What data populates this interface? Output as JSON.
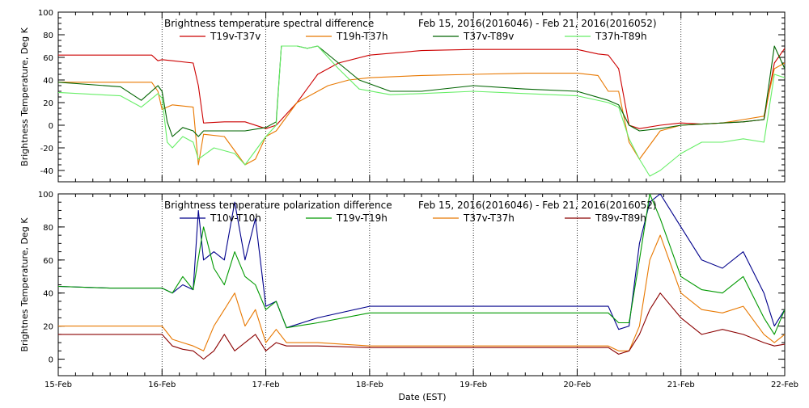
{
  "chart_data": [
    {
      "type": "line",
      "title": "Brightness temperature spectral difference",
      "date_range": "Feb 15, 2016(2016046) - Feb 21, 2016(2016052)",
      "xlabel": "",
      "ylabel": "Brightness Temperature, Deg K",
      "xlim": [
        0,
        7
      ],
      "ylim": [
        -50,
        100
      ],
      "y_ticks": [
        "-40",
        "-20",
        "0",
        "20",
        "40",
        "60",
        "80",
        "100"
      ],
      "y_tick_values": [
        -40,
        -20,
        0,
        20,
        40,
        60,
        80,
        100
      ],
      "x_tick_values": [
        0,
        1,
        2,
        3,
        4,
        5,
        6,
        7
      ],
      "grid": "dotted vertical at day boundaries",
      "legend_placement": "top, horizontal",
      "series": [
        {
          "name": "T19v-T37v",
          "color": "#cc0000",
          "x": [
            0,
            0.9,
            0.96,
            1.0,
            1.1,
            1.3,
            1.35,
            1.4,
            1.6,
            1.8,
            2.0,
            2.1,
            2.3,
            2.5,
            2.7,
            3.0,
            3.5,
            4.0,
            4.5,
            5.0,
            5.2,
            5.3,
            5.4,
            5.5,
            5.6,
            5.8,
            6.0,
            6.2,
            6.4,
            6.6,
            6.8,
            6.9,
            7.0
          ],
          "y": [
            62,
            62,
            57,
            58,
            57,
            55,
            35,
            2,
            3,
            3,
            -3,
            0,
            20,
            45,
            55,
            62,
            66,
            67,
            67,
            67,
            63,
            62,
            50,
            0,
            -3,
            0,
            2,
            1,
            2,
            3,
            5,
            55,
            68
          ]
        },
        {
          "name": "T19h-T37h",
          "color": "#e87800",
          "x": [
            0,
            0.9,
            0.96,
            1.0,
            1.1,
            1.3,
            1.35,
            1.4,
            1.6,
            1.8,
            1.9,
            2.0,
            2.1,
            2.3,
            2.4,
            2.6,
            2.8,
            3.0,
            3.5,
            4.0,
            4.5,
            5.0,
            5.2,
            5.3,
            5.4,
            5.5,
            5.6,
            5.8,
            6.0,
            6.2,
            6.4,
            6.6,
            6.8,
            6.9,
            7.0
          ],
          "y": [
            38,
            38,
            30,
            14,
            18,
            16,
            -35,
            -8,
            -10,
            -35,
            -30,
            -10,
            -5,
            20,
            25,
            35,
            40,
            42,
            44,
            45,
            46,
            46,
            44,
            30,
            30,
            -15,
            -30,
            -5,
            0,
            1,
            2,
            5,
            8,
            50,
            55
          ]
        },
        {
          "name": "T37v-T89v",
          "color": "#006400",
          "x": [
            0,
            0.6,
            0.8,
            0.96,
            1.0,
            1.05,
            1.1,
            1.2,
            1.3,
            1.35,
            1.4,
            1.5,
            1.8,
            2.0,
            2.1,
            2.15,
            2.3,
            2.4,
            2.5,
            2.7,
            2.9,
            3.2,
            3.5,
            4.0,
            4.5,
            5.0,
            5.3,
            5.4,
            5.5,
            5.6,
            5.8,
            6.0,
            6.2,
            6.4,
            6.6,
            6.8,
            6.9,
            7.0
          ],
          "y": [
            38,
            34,
            22,
            35,
            30,
            3,
            -10,
            -2,
            -5,
            -10,
            -5,
            -5,
            -5,
            -2,
            3,
            70,
            70,
            68,
            70,
            55,
            40,
            30,
            30,
            35,
            32,
            30,
            22,
            18,
            0,
            -5,
            -3,
            0,
            1,
            2,
            3,
            5,
            70,
            50
          ]
        },
        {
          "name": "T37h-T89h",
          "color": "#66ee66",
          "x": [
            0,
            0.6,
            0.8,
            0.96,
            1.0,
            1.05,
            1.1,
            1.2,
            1.3,
            1.35,
            1.5,
            1.7,
            1.8,
            2.0,
            2.1,
            2.15,
            2.3,
            2.4,
            2.5,
            2.7,
            2.9,
            3.2,
            3.5,
            4.0,
            4.5,
            5.0,
            5.3,
            5.4,
            5.5,
            5.6,
            5.7,
            5.8,
            6.0,
            6.2,
            6.4,
            6.6,
            6.8,
            6.9,
            7.0
          ],
          "y": [
            29,
            26,
            16,
            28,
            24,
            -15,
            -20,
            -10,
            -15,
            -30,
            -20,
            -25,
            -35,
            -10,
            0,
            70,
            70,
            68,
            70,
            50,
            32,
            27,
            28,
            30,
            28,
            26,
            20,
            16,
            -12,
            -30,
            -45,
            -40,
            -25,
            -15,
            -15,
            -12,
            -15,
            45,
            42
          ]
        }
      ]
    },
    {
      "type": "line",
      "title": "Brightness temperature polarization difference",
      "date_range": "Feb 15, 2016(2016046) - Feb 21, 2016(2016052)",
      "xlabel": "Date (EST)",
      "ylabel": "Brightnes Temperature, Deg K",
      "xlim": [
        0,
        7
      ],
      "ylim": [
        -10,
        100
      ],
      "x_ticks": [
        "15-Feb",
        "16-Feb",
        "17-Feb",
        "18-Feb",
        "19-Feb",
        "20-Feb",
        "21-Feb",
        "22-Feb"
      ],
      "x_tick_values": [
        0,
        1,
        2,
        3,
        4,
        5,
        6,
        7
      ],
      "y_ticks": [
        "0",
        "20",
        "40",
        "60",
        "80",
        "100"
      ],
      "y_tick_values": [
        0,
        20,
        40,
        60,
        80,
        100
      ],
      "grid": "dotted vertical at day boundaries",
      "legend_placement": "top, horizontal",
      "series": [
        {
          "name": "T10v-T10h",
          "color": "#00008b",
          "x": [
            0,
            0.5,
            1.0,
            1.1,
            1.2,
            1.3,
            1.35,
            1.4,
            1.5,
            1.6,
            1.7,
            1.8,
            1.9,
            2.0,
            2.1,
            2.2,
            2.5,
            3.0,
            3.5,
            4.0,
            4.5,
            5.0,
            5.3,
            5.4,
            5.5,
            5.6,
            5.7,
            5.8,
            6.0,
            6.2,
            6.4,
            6.6,
            6.8,
            6.9,
            7.0
          ],
          "y": [
            44,
            43,
            43,
            40,
            45,
            42,
            90,
            60,
            65,
            60,
            95,
            60,
            85,
            32,
            35,
            19,
            25,
            32,
            32,
            32,
            32,
            32,
            32,
            18,
            20,
            70,
            95,
            100,
            80,
            60,
            55,
            65,
            40,
            20,
            30
          ]
        },
        {
          "name": "T19v-T19h",
          "color": "#009900",
          "x": [
            0,
            0.5,
            1.0,
            1.1,
            1.2,
            1.3,
            1.4,
            1.5,
            1.6,
            1.7,
            1.8,
            1.9,
            2.0,
            2.1,
            2.2,
            2.5,
            3.0,
            3.5,
            4.0,
            4.5,
            5.0,
            5.3,
            5.4,
            5.5,
            5.6,
            5.7,
            5.8,
            6.0,
            6.2,
            6.4,
            6.6,
            6.8,
            6.9,
            7.0
          ],
          "y": [
            44,
            43,
            43,
            40,
            50,
            42,
            80,
            55,
            45,
            65,
            50,
            45,
            30,
            35,
            19,
            22,
            28,
            28,
            28,
            28,
            28,
            28,
            22,
            22,
            60,
            100,
            85,
            50,
            42,
            40,
            50,
            25,
            15,
            30
          ]
        },
        {
          "name": "T37v-T37h",
          "color": "#e87800",
          "x": [
            0,
            1.0,
            1.1,
            1.2,
            1.3,
            1.4,
            1.5,
            1.6,
            1.7,
            1.8,
            1.9,
            2.0,
            2.1,
            2.2,
            2.5,
            3.0,
            3.5,
            4.0,
            4.5,
            5.0,
            5.3,
            5.4,
            5.5,
            5.6,
            5.7,
            5.8,
            6.0,
            6.2,
            6.4,
            6.6,
            6.8,
            6.9,
            7.0
          ],
          "y": [
            20,
            20,
            12,
            10,
            8,
            5,
            20,
            30,
            40,
            20,
            30,
            10,
            18,
            10,
            10,
            8,
            8,
            8,
            8,
            8,
            8,
            5,
            5,
            20,
            60,
            75,
            40,
            30,
            28,
            32,
            15,
            10,
            15
          ]
        },
        {
          "name": "T89v-T89h",
          "color": "#8b0000",
          "x": [
            0,
            1.0,
            1.1,
            1.2,
            1.3,
            1.4,
            1.5,
            1.6,
            1.7,
            1.8,
            1.9,
            2.0,
            2.1,
            2.2,
            2.5,
            3.0,
            3.5,
            4.0,
            4.5,
            5.0,
            5.3,
            5.4,
            5.5,
            5.6,
            5.7,
            5.8,
            6.0,
            6.2,
            6.4,
            6.6,
            6.8,
            6.9,
            7.0
          ],
          "y": [
            15,
            15,
            8,
            6,
            5,
            0,
            5,
            15,
            5,
            10,
            15,
            5,
            10,
            8,
            8,
            7,
            7,
            7,
            7,
            7,
            7,
            3,
            5,
            15,
            30,
            40,
            25,
            15,
            18,
            15,
            10,
            8,
            9
          ]
        }
      ]
    }
  ]
}
